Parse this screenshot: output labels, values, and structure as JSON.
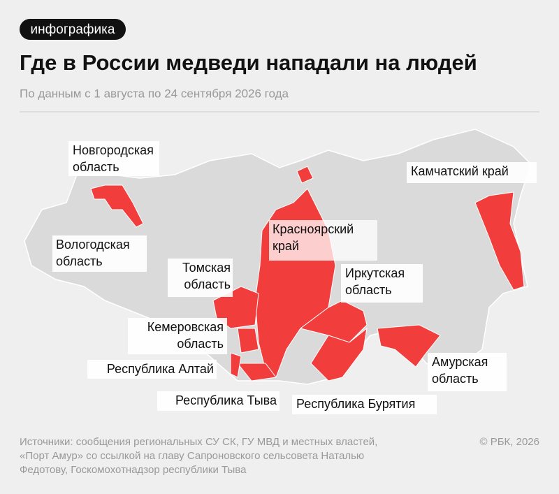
{
  "header": {
    "tag": "инфографика",
    "title": "Где в России медведи нападали на людей",
    "subtitle": "По данным с 1 августа по 24 сентября 2026 года"
  },
  "map": {
    "regions": [
      {
        "lines": [
          "Новгородская",
          "область"
        ]
      },
      {
        "lines": [
          "Вологодская",
          "область"
        ]
      },
      {
        "lines": [
          "Томская",
          "область"
        ]
      },
      {
        "lines": [
          "Кемеровская",
          "область"
        ]
      },
      {
        "lines": [
          "Республика Алтай"
        ]
      },
      {
        "lines": [
          "Республика Тыва"
        ]
      },
      {
        "lines": [
          "Красноярский",
          "край"
        ]
      },
      {
        "lines": [
          "Иркутская",
          "область"
        ]
      },
      {
        "lines": [
          "Камчатский край"
        ]
      },
      {
        "lines": [
          "Амурская",
          "область"
        ]
      },
      {
        "lines": [
          "Республика Бурятия"
        ]
      }
    ]
  },
  "footer": {
    "source": [
      "Источники: сообщения региональных СУ СК, ГУ МВД и местных властей,",
      "«Порт Амур» со ссылкой на главу Сапроновского сельсовета Наталью",
      "Федотову, Госкомохотнадзор республики Тыва"
    ],
    "copyright": "© РБК, 2026"
  }
}
